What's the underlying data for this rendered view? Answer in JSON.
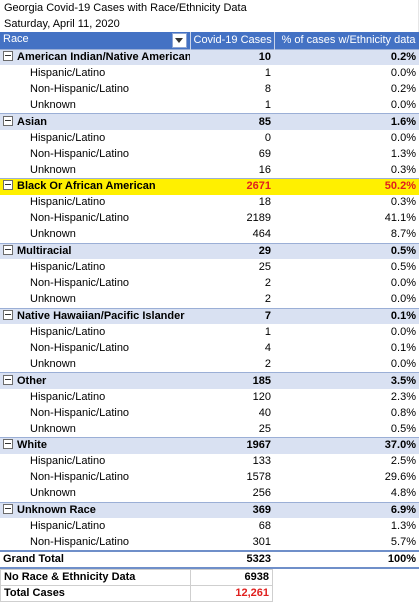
{
  "title": "Georgia Covid-19 Cases with Race/Ethnicity Data",
  "date": "Saturday, April 11, 2020",
  "header": {
    "race": "Race",
    "cases": "Covid-19 Cases",
    "pct": "% of cases w/Ethnicity data"
  },
  "groups": [
    {
      "name": "American Indian/Native American",
      "cases": "10",
      "pct": "0.2%",
      "highlight": false,
      "subs": [
        {
          "name": "Hispanic/Latino",
          "cases": "1",
          "pct": "0.0%"
        },
        {
          "name": "Non-Hispanic/Latino",
          "cases": "8",
          "pct": "0.2%"
        },
        {
          "name": "Unknown",
          "cases": "1",
          "pct": "0.0%"
        }
      ]
    },
    {
      "name": "Asian",
      "cases": "85",
      "pct": "1.6%",
      "highlight": false,
      "subs": [
        {
          "name": "Hispanic/Latino",
          "cases": "0",
          "pct": "0.0%"
        },
        {
          "name": "Non-Hispanic/Latino",
          "cases": "69",
          "pct": "1.3%"
        },
        {
          "name": "Unknown",
          "cases": "16",
          "pct": "0.3%"
        }
      ]
    },
    {
      "name": "Black Or African American",
      "cases": "2671",
      "pct": "50.2%",
      "highlight": true,
      "subs": [
        {
          "name": "Hispanic/Latino",
          "cases": "18",
          "pct": "0.3%"
        },
        {
          "name": "Non-Hispanic/Latino",
          "cases": "2189",
          "pct": "41.1%"
        },
        {
          "name": "Unknown",
          "cases": "464",
          "pct": "8.7%"
        }
      ]
    },
    {
      "name": "Multiracial",
      "cases": "29",
      "pct": "0.5%",
      "highlight": false,
      "subs": [
        {
          "name": "Hispanic/Latino",
          "cases": "25",
          "pct": "0.5%"
        },
        {
          "name": "Non-Hispanic/Latino",
          "cases": "2",
          "pct": "0.0%"
        },
        {
          "name": "Unknown",
          "cases": "2",
          "pct": "0.0%"
        }
      ]
    },
    {
      "name": "Native Hawaiian/Pacific Islander",
      "cases": "7",
      "pct": "0.1%",
      "highlight": false,
      "subs": [
        {
          "name": "Hispanic/Latino",
          "cases": "1",
          "pct": "0.0%"
        },
        {
          "name": "Non-Hispanic/Latino",
          "cases": "4",
          "pct": "0.1%"
        },
        {
          "name": "Unknown",
          "cases": "2",
          "pct": "0.0%"
        }
      ]
    },
    {
      "name": "Other",
      "cases": "185",
      "pct": "3.5%",
      "highlight": false,
      "subs": [
        {
          "name": "Hispanic/Latino",
          "cases": "120",
          "pct": "2.3%"
        },
        {
          "name": "Non-Hispanic/Latino",
          "cases": "40",
          "pct": "0.8%"
        },
        {
          "name": "Unknown",
          "cases": "25",
          "pct": "0.5%"
        }
      ]
    },
    {
      "name": "White",
      "cases": "1967",
      "pct": "37.0%",
      "highlight": false,
      "subs": [
        {
          "name": "Hispanic/Latino",
          "cases": "133",
          "pct": "2.5%"
        },
        {
          "name": "Non-Hispanic/Latino",
          "cases": "1578",
          "pct": "29.6%"
        },
        {
          "name": "Unknown",
          "cases": "256",
          "pct": "4.8%"
        }
      ]
    },
    {
      "name": "Unknown Race",
      "cases": "369",
      "pct": "6.9%",
      "highlight": false,
      "subs": [
        {
          "name": "Hispanic/Latino",
          "cases": "68",
          "pct": "1.3%"
        },
        {
          "name": "Non-Hispanic/Latino",
          "cases": "301",
          "pct": "5.7%"
        }
      ]
    }
  ],
  "grand_total": {
    "label": "Grand Total",
    "cases": "5323",
    "pct": "100%"
  },
  "no_race": {
    "label": "No Race & Ethnicity Data",
    "value": "6938"
  },
  "total_cases": {
    "label": "Total Cases",
    "value": "12,261"
  },
  "colors": {
    "header_blue": "#4472c4",
    "group_row": "#d9e1f2",
    "highlight_yellow": "#fff000",
    "red_text": "#e0201e"
  }
}
